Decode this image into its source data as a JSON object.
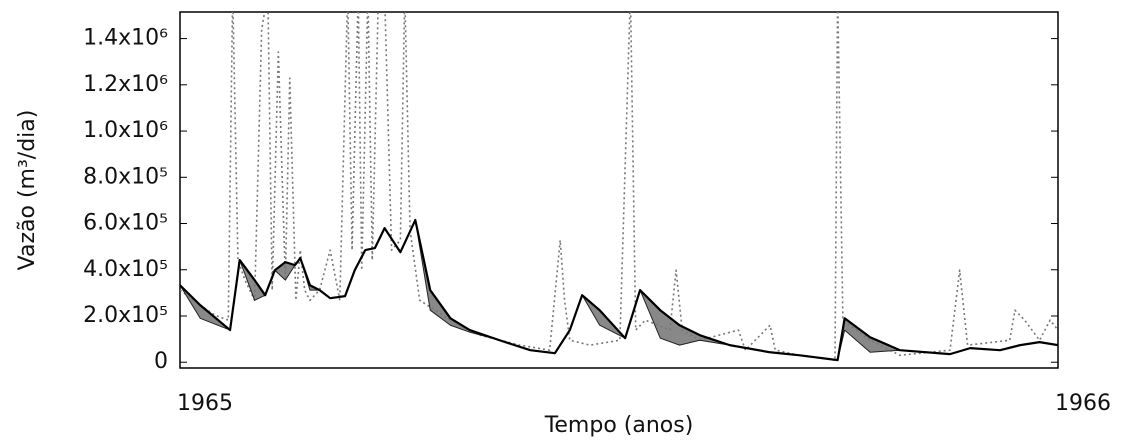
{
  "chart_data": {
    "type": "line",
    "y_label": "Vazão (m³/dia)",
    "x_label": "Tempo (anos)",
    "xlim": [
      1965,
      1966
    ],
    "xticks": [
      1965,
      1966
    ],
    "ylim": [
      -25000,
      1515000
    ],
    "yticks": [
      0,
      {
        "value": 200000,
        "label": "2.0x10⁵"
      },
      {
        "value": 400000,
        "label": "4.0x10⁵"
      },
      {
        "value": 600000,
        "label": "6.0x10⁵"
      },
      {
        "value": 800000,
        "label": "8.0x10⁵"
      },
      {
        "value": 1000000,
        "label": "1.0x10⁶"
      },
      {
        "value": 1200000,
        "label": "1.2x10⁶"
      },
      {
        "value": 1400000,
        "label": "1.4x10⁶"
      }
    ],
    "fill_color": "#888888",
    "series": [
      {
        "color": "#000000",
        "style": "solid",
        "x": [
          1965,
          1965.023,
          1965.057,
          1965.068,
          1965.085,
          1965.097,
          1965.108,
          1965.12,
          1965.131,
          1965.137,
          1965.148,
          1965.159,
          1965.171,
          1965.188,
          1965.199,
          1965.211,
          1965.222,
          1965.233,
          1965.251,
          1965.268,
          1965.285,
          1965.308,
          1965.33,
          1965.364,
          1965.399,
          1965.427,
          1965.444,
          1965.458,
          1965.478,
          1965.507,
          1965.524,
          1965.547,
          1965.569,
          1965.592,
          1965.626,
          1965.672,
          1965.706,
          1965.749,
          1965.757,
          1965.786,
          1965.82,
          1965.877,
          1965.9,
          1965.934,
          1965.957,
          1965.979,
          1966
        ],
        "values": [
          333000,
          247000,
          139000,
          442000,
          355000,
          290000,
          398000,
          433000,
          420000,
          450000,
          333000,
          312000,
          277000,
          286000,
          398000,
          485000,
          494000,
          580000,
          476000,
          615000,
          312000,
          190000,
          139000,
          95000,
          52000,
          39000,
          139000,
          290000,
          225000,
          104000,
          312000,
          225000,
          160000,
          117000,
          74000,
          43000,
          30000,
          9000,
          190000,
          108000,
          52000,
          35000,
          61000,
          52000,
          74000,
          87000,
          74000
        ]
      },
      {
        "color": "#222222",
        "style": "thin",
        "x": [
          1965,
          1965.023,
          1965.057,
          1965.068,
          1965.085,
          1965.097,
          1965.108,
          1965.12,
          1965.131,
          1965.137,
          1965.148,
          1965.159,
          1965.171,
          1965.188,
          1965.199,
          1965.211,
          1965.222,
          1965.233,
          1965.251,
          1965.268,
          1965.285,
          1965.308,
          1965.33,
          1965.364,
          1965.399,
          1965.427,
          1965.444,
          1965.458,
          1965.478,
          1965.507,
          1965.524,
          1965.547,
          1965.569,
          1965.592,
          1965.626,
          1965.672,
          1965.706,
          1965.749,
          1965.757,
          1965.786,
          1965.82,
          1965.877,
          1965.9,
          1965.934,
          1965.957,
          1965.979,
          1966
        ],
        "values": [
          333000,
          190000,
          139000,
          442000,
          268000,
          290000,
          398000,
          355000,
          420000,
          450000,
          312000,
          312000,
          277000,
          286000,
          398000,
          485000,
          494000,
          580000,
          476000,
          615000,
          225000,
          160000,
          130000,
          95000,
          52000,
          39000,
          139000,
          290000,
          160000,
          104000,
          312000,
          104000,
          74000,
          95000,
          74000,
          43000,
          30000,
          9000,
          139000,
          43000,
          52000,
          35000,
          61000,
          52000,
          74000,
          87000,
          74000
        ]
      },
      {
        "color": "#777777",
        "style": "dotted",
        "x": [
          1965,
          1965.023,
          1965.04,
          1965.055,
          1965.06,
          1965.066,
          1965.074,
          1965.085,
          1965.093,
          1965.1,
          1965.105,
          1965.112,
          1965.12,
          1965.125,
          1965.132,
          1965.137,
          1965.142,
          1965.148,
          1965.159,
          1965.171,
          1965.182,
          1965.191,
          1965.196,
          1965.203,
          1965.207,
          1965.214,
          1965.219,
          1965.226,
          1965.233,
          1965.241,
          1965.251,
          1965.256,
          1965.262,
          1965.273,
          1965.308,
          1965.342,
          1965.387,
          1965.421,
          1965.433,
          1965.438,
          1965.444,
          1965.467,
          1965.501,
          1965.513,
          1965.519,
          1965.53,
          1965.558,
          1965.565,
          1965.572,
          1965.592,
          1965.636,
          1965.644,
          1965.672,
          1965.678,
          1965.706,
          1965.746,
          1965.749,
          1965.755,
          1965.786,
          1965.82,
          1965.877,
          1965.888,
          1965.897,
          1965.945,
          1965.951,
          1965.962,
          1965.979,
          1965.991,
          1966
        ],
        "values": [
          312000,
          247000,
          203000,
          182000,
          1600000,
          442000,
          355000,
          268000,
          1437000,
          1600000,
          312000,
          1342000,
          355000,
          1229000,
          268000,
          485000,
          312000,
          268000,
          312000,
          485000,
          268000,
          1600000,
          485000,
          1600000,
          398000,
          1600000,
          442000,
          1600000,
          1600000,
          485000,
          528000,
          1600000,
          571000,
          268000,
          182000,
          117000,
          74000,
          52000,
          528000,
          268000,
          95000,
          74000,
          95000,
          1600000,
          139000,
          182000,
          139000,
          398000,
          139000,
          95000,
          139000,
          52000,
          160000,
          52000,
          30000,
          9000,
          1600000,
          182000,
          95000,
          30000,
          52000,
          398000,
          74000,
          95000,
          225000,
          182000,
          95000,
          182000,
          139000
        ]
      }
    ]
  }
}
